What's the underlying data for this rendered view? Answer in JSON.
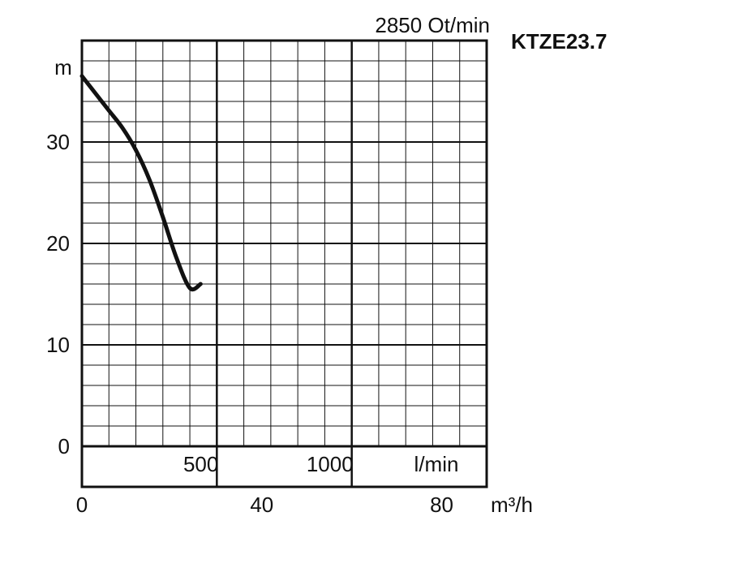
{
  "chart_data": {
    "type": "line",
    "title": "KTZE23.7",
    "speed_label": "2850 Ot/min",
    "ylabel": "m",
    "ylim": [
      0,
      40
    ],
    "y_ticks": [
      0,
      10,
      20,
      30
    ],
    "x_flow_unit": "l/min",
    "x_flow_ticks": [
      500,
      1000
    ],
    "x_flow_range": [
      0,
      1500
    ],
    "x_m3h_unit": "m³/h",
    "x_m3h_ticks": [
      0,
      40,
      80
    ],
    "x_m3h_range": [
      0,
      90
    ],
    "grid": true,
    "series": [
      {
        "x": [
          0,
          50,
          100,
          150,
          200,
          250,
          300,
          350,
          400,
          440
        ],
        "y": [
          36.5,
          34.8,
          33.1,
          31.4,
          29.2,
          26.3,
          22.6,
          18.6,
          15.6,
          16.0
        ]
      }
    ]
  }
}
